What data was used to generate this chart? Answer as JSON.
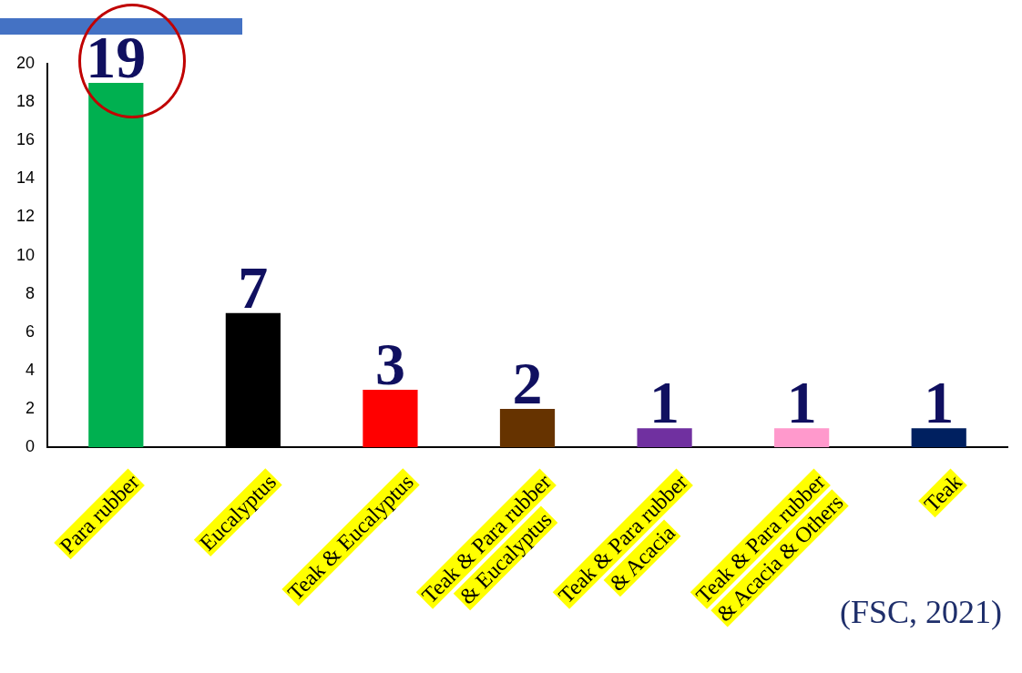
{
  "chart_data": {
    "type": "bar",
    "categories": [
      "Para rubber",
      "Eucalyptus",
      "Teak & Eucalyptus",
      "Teak & Para rubber & Eucalyptus",
      "Teak & Para rubber & Acacia",
      "Teak & Para rubber & Acacia & Others",
      "Teak"
    ],
    "values": [
      19,
      7,
      3,
      2,
      1,
      1,
      1
    ],
    "colors": [
      "#00b050",
      "#000000",
      "#ff0000",
      "#663300",
      "#7030a0",
      "#ff99cc",
      "#002060"
    ],
    "ylim": [
      0,
      20
    ],
    "yticks": [
      0,
      2,
      4,
      6,
      8,
      10,
      12,
      14,
      16,
      18,
      20
    ],
    "grid": false,
    "legend": false,
    "data_labels": true,
    "annotations": [
      "(FSC, 2021)"
    ]
  }
}
